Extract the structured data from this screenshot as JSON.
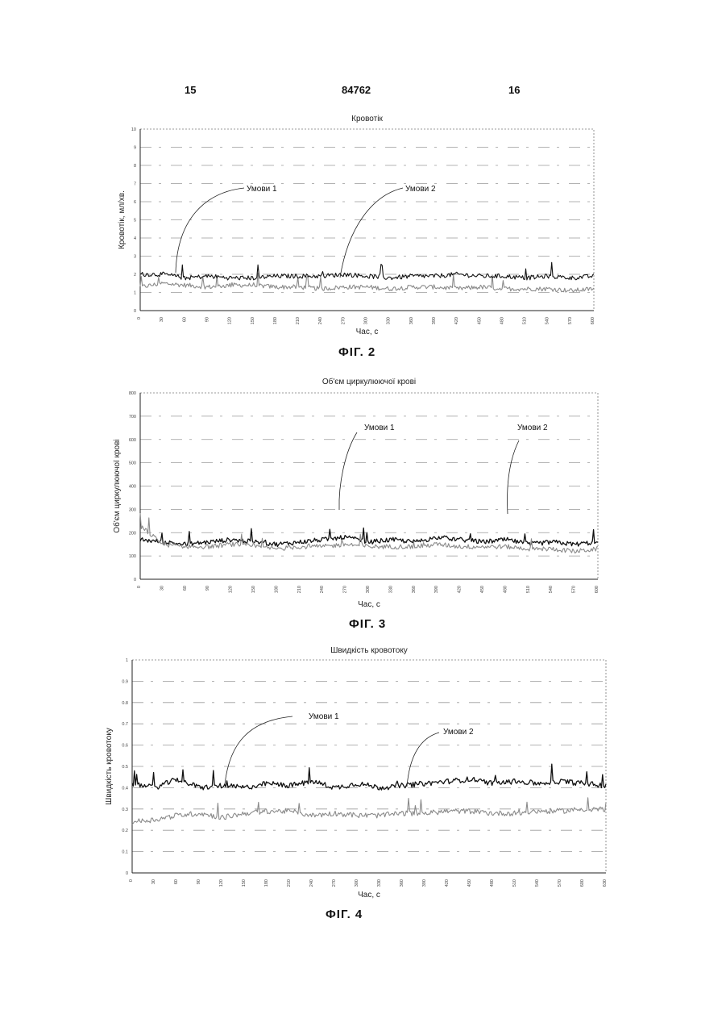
{
  "header": {
    "page_left": "15",
    "patent_number": "84762",
    "page_right": "16"
  },
  "chart_data": [
    {
      "type": "line",
      "title": "Кровотік",
      "xlabel": "Час, с",
      "ylabel": "Кровотік, мл/хв.",
      "ylim": [
        0,
        10
      ],
      "xlim": [
        0,
        600
      ],
      "yticks": [
        "0",
        "1",
        "2",
        "3",
        "4",
        "5",
        "6",
        "7",
        "8",
        "9",
        "10"
      ],
      "xticks": [
        "0",
        "30",
        "60",
        "90",
        "120",
        "150",
        "180",
        "210",
        "240",
        "270",
        "300",
        "330",
        "360",
        "390",
        "420",
        "450",
        "480",
        "510",
        "540",
        "570",
        "600"
      ],
      "annotations": [
        "Умови 1",
        "Умови 2"
      ],
      "figure_label": "ФІГ. 2",
      "series": [
        {
          "name": "Умови 1",
          "color": "#8a8a8a",
          "x": [
            0,
            30,
            60,
            90,
            120,
            150,
            180,
            210,
            240,
            270,
            300,
            330,
            360,
            390,
            420,
            450,
            480,
            510,
            540,
            570,
            600
          ],
          "y": [
            1.3,
            1.5,
            1.4,
            1.3,
            1.4,
            1.4,
            1.3,
            1.3,
            1.2,
            1.3,
            1.3,
            1.2,
            1.3,
            1.3,
            1.2,
            1.3,
            1.2,
            1.2,
            1.2,
            1.1,
            1.2
          ]
        },
        {
          "name": "Умови 2",
          "color": "#111111",
          "x": [
            0,
            30,
            60,
            90,
            120,
            150,
            180,
            210,
            240,
            270,
            300,
            330,
            360,
            390,
            420,
            450,
            480,
            510,
            540,
            570,
            600
          ],
          "y": [
            2.0,
            2.0,
            1.8,
            1.9,
            1.8,
            1.8,
            1.9,
            1.9,
            1.9,
            2.0,
            1.9,
            1.8,
            1.9,
            1.9,
            2.0,
            1.9,
            1.9,
            1.8,
            1.9,
            1.8,
            1.9
          ]
        }
      ]
    },
    {
      "type": "line",
      "title": "Об'єм циркулюючої крові",
      "xlabel": "Час, с",
      "ylabel": "Об'єм циркулюючої крові",
      "ylim": [
        0,
        800
      ],
      "xlim": [
        0,
        600
      ],
      "yticks": [
        "0",
        "100",
        "200",
        "300",
        "400",
        "500",
        "600",
        "700",
        "800"
      ],
      "xticks": [
        "0",
        "30",
        "60",
        "90",
        "120",
        "150",
        "180",
        "210",
        "240",
        "270",
        "300",
        "330",
        "360",
        "390",
        "420",
        "450",
        "480",
        "510",
        "540",
        "570",
        "600"
      ],
      "annotations": [
        "Умови 1",
        "Умови 2"
      ],
      "figure_label": "ФІГ. 3",
      "series": [
        {
          "name": "Умови 1",
          "color": "#111111",
          "x": [
            0,
            30,
            60,
            90,
            120,
            150,
            180,
            210,
            240,
            270,
            300,
            330,
            360,
            390,
            420,
            450,
            480,
            510,
            540,
            570,
            600
          ],
          "y": [
            170,
            160,
            150,
            160,
            170,
            160,
            150,
            160,
            170,
            180,
            160,
            170,
            160,
            180,
            170,
            160,
            170,
            150,
            160,
            150,
            160
          ]
        },
        {
          "name": "Умови 2",
          "color": "#8a8a8a",
          "x": [
            0,
            30,
            60,
            90,
            120,
            150,
            180,
            210,
            240,
            270,
            300,
            330,
            360,
            390,
            420,
            450,
            480,
            510,
            540,
            570,
            600
          ],
          "y": [
            230,
            150,
            140,
            140,
            150,
            140,
            130,
            140,
            140,
            150,
            140,
            140,
            140,
            150,
            140,
            140,
            140,
            130,
            130,
            120,
            130
          ]
        }
      ]
    },
    {
      "type": "line",
      "title": "Швидкість кровотоку",
      "xlabel": "Час, с",
      "ylabel": "Швидкість кровотоку",
      "ylim": [
        0,
        1
      ],
      "xlim": [
        0,
        630
      ],
      "yticks": [
        "0",
        "0.1",
        "0.2",
        "0.3",
        "0.4",
        "0.5",
        "0.6",
        "0.7",
        "0.8",
        "0.9",
        "1"
      ],
      "xticks": [
        "0",
        "30",
        "60",
        "90",
        "120",
        "150",
        "180",
        "210",
        "240",
        "270",
        "300",
        "330",
        "360",
        "390",
        "420",
        "450",
        "480",
        "510",
        "540",
        "570",
        "600",
        "630"
      ],
      "annotations": [
        "Умови 1",
        "Умови 2"
      ],
      "figure_label": "ФІГ. 4",
      "series": [
        {
          "name": "Умови 1",
          "color": "#111111",
          "x": [
            0,
            30,
            60,
            90,
            120,
            150,
            180,
            210,
            240,
            270,
            300,
            330,
            360,
            390,
            420,
            450,
            480,
            510,
            540,
            570,
            600,
            630
          ],
          "y": [
            0.42,
            0.4,
            0.44,
            0.4,
            0.41,
            0.4,
            0.42,
            0.41,
            0.43,
            0.4,
            0.42,
            0.4,
            0.41,
            0.42,
            0.43,
            0.44,
            0.42,
            0.43,
            0.42,
            0.43,
            0.42,
            0.41
          ]
        },
        {
          "name": "Умови 2",
          "color": "#8a8a8a",
          "x": [
            0,
            30,
            60,
            90,
            120,
            150,
            180,
            210,
            240,
            270,
            300,
            330,
            360,
            390,
            420,
            450,
            480,
            510,
            540,
            570,
            600,
            630
          ],
          "y": [
            0.24,
            0.25,
            0.27,
            0.28,
            0.26,
            0.28,
            0.29,
            0.29,
            0.27,
            0.28,
            0.27,
            0.27,
            0.28,
            0.28,
            0.29,
            0.29,
            0.28,
            0.28,
            0.29,
            0.29,
            0.3,
            0.3
          ]
        }
      ]
    }
  ]
}
